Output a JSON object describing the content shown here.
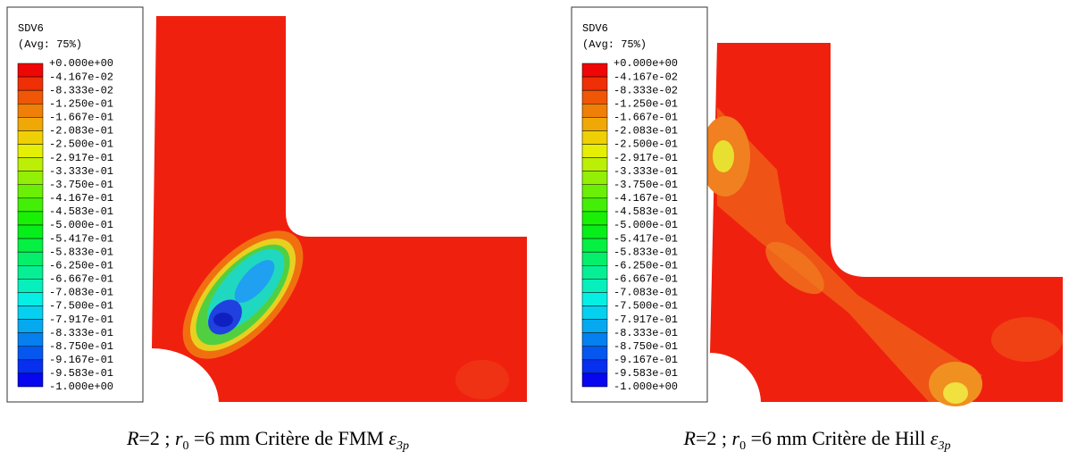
{
  "panels": [
    {
      "legend": {
        "title": "SDV6",
        "subtitle": "(Avg: 75%)",
        "labels": [
          "+0.000e+00",
          "-4.167e-02",
          "-8.333e-02",
          "-1.250e-01",
          "-1.667e-01",
          "-2.083e-01",
          "-2.500e-01",
          "-2.917e-01",
          "-3.333e-01",
          "-3.750e-01",
          "-4.167e-01",
          "-4.583e-01",
          "-5.000e-01",
          "-5.417e-01",
          "-5.833e-01",
          "-6.250e-01",
          "-6.667e-01",
          "-7.083e-01",
          "-7.500e-01",
          "-7.917e-01",
          "-8.333e-01",
          "-8.750e-01",
          "-9.167e-01",
          "-9.583e-01",
          "-1.000e+00"
        ]
      },
      "caption": {
        "R": "R",
        "eq": "=2 ; ",
        "r": "r",
        "r_sub": "0",
        "text": " =6 mm Critère de FMM ",
        "eps": "ε",
        "eps_sub": "3p"
      }
    },
    {
      "legend": {
        "title": "SDV6",
        "subtitle": "(Avg: 75%)",
        "labels": [
          "+0.000e+00",
          "-4.167e-02",
          "-8.333e-02",
          "-1.250e-01",
          "-1.667e-01",
          "-2.083e-01",
          "-2.500e-01",
          "-2.917e-01",
          "-3.333e-01",
          "-3.750e-01",
          "-4.167e-01",
          "-4.583e-01",
          "-5.000e-01",
          "-5.417e-01",
          "-5.833e-01",
          "-6.250e-01",
          "-6.667e-01",
          "-7.083e-01",
          "-7.500e-01",
          "-7.917e-01",
          "-8.333e-01",
          "-8.750e-01",
          "-9.167e-01",
          "-9.583e-01",
          "-1.000e+00"
        ]
      },
      "caption": {
        "R": "R",
        "eq": "=2 ; ",
        "r": "r",
        "r_sub": "0",
        "text": " =6 mm Critère de Hill ",
        "eps": "ε",
        "eps_sub": "3p"
      }
    }
  ]
}
